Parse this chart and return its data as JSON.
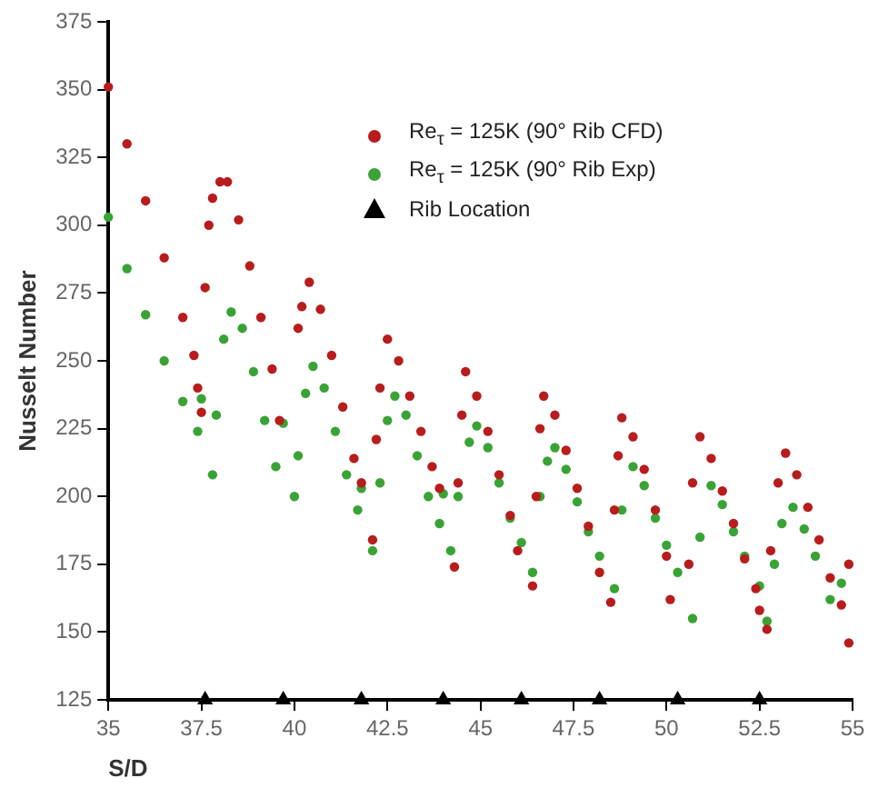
{
  "chart_data": {
    "type": "scatter",
    "xlabel": "S/D",
    "ylabel": "Nusselt Number",
    "xlim": [
      35,
      55
    ],
    "ylim": [
      125,
      375
    ],
    "xticks": [
      35,
      37.5,
      40,
      42.5,
      45,
      47.5,
      50,
      52.5,
      55
    ],
    "yticks": [
      125,
      150,
      175,
      200,
      225,
      250,
      275,
      300,
      325,
      350,
      375
    ],
    "grid": false,
    "legend": "top right",
    "series": [
      {
        "name": "Re$_{τ}$ = 125K (90° Rib CFD)",
        "color": "#b81c1c",
        "marker": "circle",
        "x": [
          35.0,
          35.5,
          36.0,
          36.5,
          37.0,
          37.3,
          37.4,
          37.5,
          37.6,
          37.7,
          37.8,
          38.0,
          38.2,
          38.5,
          38.8,
          39.1,
          39.4,
          39.6,
          40.1,
          40.2,
          40.4,
          40.7,
          41.0,
          41.3,
          41.6,
          41.8,
          42.1,
          42.2,
          42.3,
          42.5,
          42.8,
          43.1,
          43.4,
          43.7,
          43.9,
          44.3,
          44.4,
          44.5,
          44.6,
          44.9,
          45.2,
          45.5,
          45.8,
          46.0,
          46.4,
          46.5,
          46.6,
          46.7,
          47.0,
          47.3,
          47.6,
          47.9,
          48.2,
          48.5,
          48.6,
          48.7,
          48.8,
          49.1,
          49.4,
          49.7,
          50.0,
          50.1,
          50.6,
          50.7,
          50.9,
          51.2,
          51.5,
          51.8,
          52.1,
          52.4,
          52.5,
          52.7,
          52.8,
          53.0,
          53.2,
          53.5,
          53.8,
          54.1,
          54.4,
          54.7,
          54.9,
          54.9
        ],
        "values": [
          351,
          330,
          309,
          288,
          266,
          252,
          240,
          231,
          277,
          300,
          310,
          316,
          316,
          302,
          285,
          266,
          247,
          228,
          262,
          270,
          279,
          269,
          252,
          233,
          214,
          205,
          184,
          221,
          240,
          258,
          250,
          237,
          224,
          211,
          203,
          174,
          205,
          230,
          246,
          237,
          224,
          208,
          193,
          180,
          167,
          200,
          225,
          237,
          230,
          217,
          203,
          189,
          172,
          161,
          195,
          215,
          229,
          222,
          210,
          195,
          178,
          162,
          175,
          205,
          222,
          214,
          202,
          190,
          177,
          166,
          158,
          151,
          180,
          205,
          216,
          208,
          196,
          184,
          170,
          160,
          146,
          175
        ]
      },
      {
        "name": "Re$_{τ}$ = 125K (90° Rib Exp)",
        "color": "#3aa335",
        "marker": "circle",
        "x": [
          35.0,
          35.5,
          36.0,
          36.5,
          37.0,
          37.4,
          37.5,
          37.8,
          37.9,
          38.1,
          38.3,
          38.6,
          38.9,
          39.2,
          39.5,
          39.7,
          40.0,
          40.1,
          40.3,
          40.5,
          40.8,
          41.1,
          41.4,
          41.7,
          41.8,
          42.1,
          42.3,
          42.5,
          42.7,
          43.0,
          43.3,
          43.6,
          43.9,
          44.0,
          44.2,
          44.4,
          44.7,
          44.9,
          45.2,
          45.5,
          45.8,
          46.1,
          46.4,
          46.6,
          46.8,
          47.0,
          47.3,
          47.6,
          47.9,
          48.2,
          48.6,
          48.8,
          49.1,
          49.4,
          49.7,
          50.0,
          50.3,
          50.7,
          50.9,
          51.2,
          51.5,
          51.8,
          52.1,
          52.5,
          52.7,
          52.9,
          53.1,
          53.4,
          53.7,
          54.0,
          54.4,
          54.7
        ],
        "values": [
          303,
          284,
          267,
          250,
          235,
          224,
          236,
          208,
          230,
          258,
          268,
          262,
          246,
          228,
          211,
          227,
          200,
          215,
          238,
          248,
          240,
          224,
          208,
          195,
          203,
          180,
          205,
          228,
          237,
          230,
          215,
          200,
          190,
          201,
          180,
          200,
          220,
          226,
          218,
          205,
          192,
          183,
          172,
          200,
          213,
          218,
          210,
          198,
          187,
          178,
          166,
          195,
          211,
          204,
          192,
          182,
          172,
          155,
          185,
          204,
          197,
          187,
          178,
          167,
          154,
          175,
          190,
          196,
          188,
          178,
          162,
          168
        ]
      },
      {
        "name": "Rib Location",
        "color": "#000000",
        "marker": "triangle",
        "x": [
          37.6,
          39.7,
          41.8,
          44.0,
          46.1,
          48.2,
          50.3,
          52.5
        ],
        "values": [
          125,
          125,
          125,
          125,
          125,
          125,
          125,
          125
        ]
      }
    ]
  }
}
